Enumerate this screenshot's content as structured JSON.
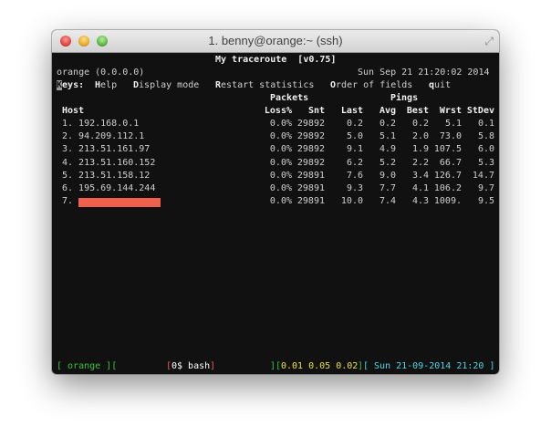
{
  "window": {
    "title": "1. benny@orange:~ (ssh)"
  },
  "mtr": {
    "title": "My traceroute  [v0.75]",
    "host_info": "orange (0.0.0.0)",
    "datetime": "Sun Sep 21 21:20:02 2014",
    "keys": {
      "label_first": "K",
      "label_rest": "eys:",
      "items": [
        {
          "key": "H",
          "rest": "elp"
        },
        {
          "key": "D",
          "rest": "isplay mode"
        },
        {
          "key": "R",
          "rest": "estart statistics"
        },
        {
          "key": "O",
          "rest": "rder of fields"
        },
        {
          "key": "q",
          "rest": "uit"
        }
      ]
    },
    "group_headers": {
      "packets": "Packets",
      "pings": "Pings"
    },
    "columns": [
      "Host",
      "Loss%",
      "Snt",
      "Last",
      "Avg",
      "Best",
      "Wrst",
      "StDev"
    ],
    "rows": [
      [
        "1. 192.168.0.1",
        "0.0%",
        "29892",
        "0.2",
        "0.2",
        "0.2",
        "5.1",
        "0.1"
      ],
      [
        "2. 94.209.112.1",
        "0.0%",
        "29892",
        "5.0",
        "5.1",
        "2.0",
        "73.0",
        "5.8"
      ],
      [
        "3. 213.51.161.97",
        "0.0%",
        "29892",
        "9.1",
        "4.9",
        "1.9",
        "107.5",
        "6.0"
      ],
      [
        "4. 213.51.160.152",
        "0.0%",
        "29892",
        "6.2",
        "5.2",
        "2.2",
        "66.7",
        "5.3"
      ],
      [
        "5. 213.51.158.12",
        "0.0%",
        "29891",
        "7.6",
        "9.0",
        "3.4",
        "126.7",
        "14.7"
      ],
      [
        "6. 195.69.144.244",
        "0.0%",
        "29891",
        "9.3",
        "7.7",
        "4.1",
        "106.2",
        "9.7"
      ],
      [
        "7.",
        "0.0%",
        "29891",
        "10.0",
        "7.4",
        "4.3",
        "1009.",
        "9.5"
      ]
    ]
  },
  "status_bar": {
    "session_open": "[ orange ][",
    "window_open": "[",
    "window": "0$ bash",
    "window_close": "]",
    "load_open": "][",
    "load": "0.01 0.05 0.02",
    "load_close": "]",
    "clock": "[ Sun 21-09-2014 21:20 ]"
  },
  "colors": {
    "redaction": "#f0604f",
    "status_green": "#3fc13f",
    "status_yellow": "#e6e04a",
    "status_cyan": "#4fd6e6"
  }
}
